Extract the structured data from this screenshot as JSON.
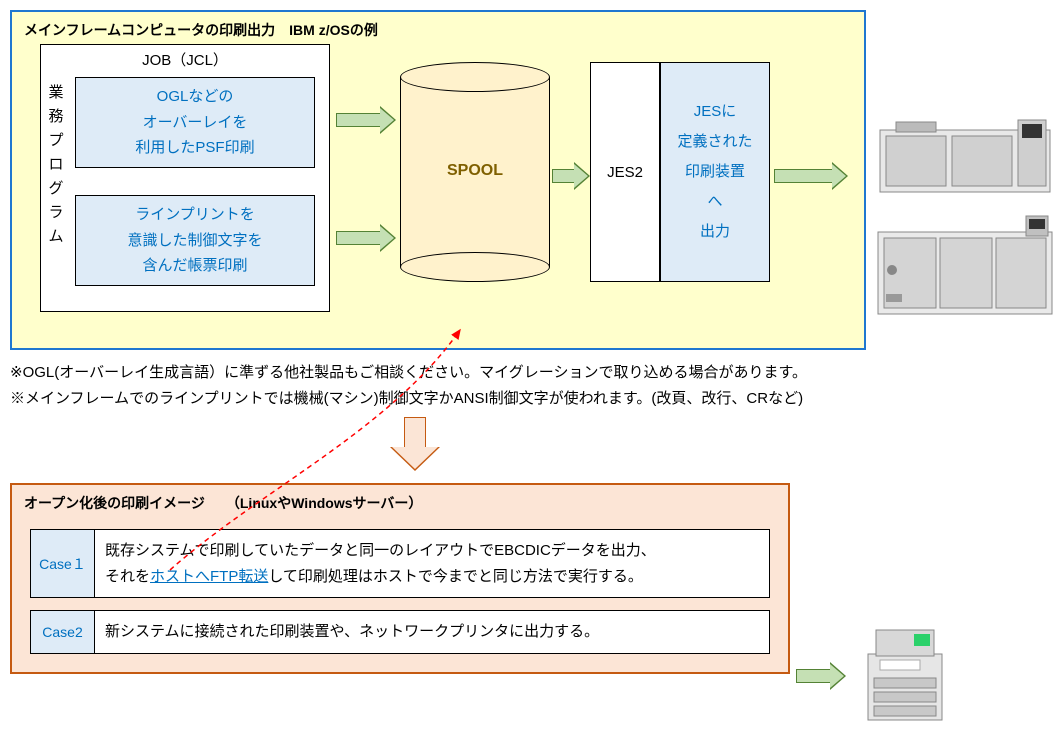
{
  "top": {
    "title": "メインフレームコンピュータの印刷出力　IBM z/OSの例",
    "bg": "#ffffcc",
    "border": "#1f77d0",
    "job": {
      "title": "JOB（JCL）",
      "vlabel": "業務プログラム",
      "box_a": "OGLなどの\nオーバーレイを\n利用したPSF印刷",
      "box_b": "ラインプリントを\n意識した制御文字を\n含んだ帳票印刷",
      "inner_bg": "#deebf7",
      "inner_text_color": "#0070c0"
    },
    "spool": {
      "label": "SPOOL",
      "fill": "#fff2cc",
      "text_color": "#7f6000"
    },
    "jes2": "JES2",
    "jesdef": "JESに\n定義された\n印刷装置\nへ\n出力",
    "arrow_fill": "#c5e0b4",
    "arrow_border": "#548235"
  },
  "notes": {
    "line1": "※OGL(オーバーレイ生成言語）に準ずる他社製品もご相談ください。マイグレーションで取り込める場合があります。",
    "line2": "※メインフレームでのラインプリントでは機械(マシン)制御文字かANSI制御文字が使われます。(改頁、改行、CRなど)"
  },
  "down_arrow": {
    "fill": "#fbe5d6",
    "border": "#c55a11"
  },
  "bottom": {
    "title": "オープン化後の印刷イメージ　　（LinuxやWindowsサーバー）",
    "bg": "#fce5d6",
    "border": "#c55a11",
    "case1": {
      "label": "Case１",
      "text_a": "既存システムで印刷していたデータと同一のレイアウトでEBCDICデータを出力、",
      "text_b_pre": "それを",
      "text_b_ul": "ホストへFTP転送",
      "text_b_post": "して印刷処理はホストで今までと同じ方法で実行する。"
    },
    "case2": {
      "label": "Case2",
      "text": "新システムに接続された印刷装置や、ネットワークプリンタに出力する。"
    }
  },
  "red_dash_color": "#ff0000"
}
